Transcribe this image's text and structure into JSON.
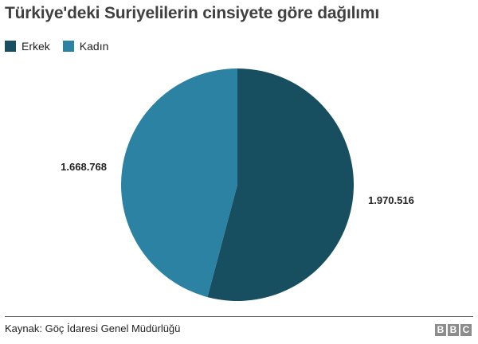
{
  "chart_data": {
    "type": "pie",
    "title": "Türkiye'deki Suriyelilerin cinsiyete göre dağılımı",
    "legend_position": "top-left",
    "slices": [
      {
        "name": "Erkek",
        "value": 1970516,
        "label": "1.970.516",
        "color": "#174f60"
      },
      {
        "name": "Kadın",
        "value": 1668768,
        "label": "1.668.768",
        "color": "#2b82a2"
      }
    ]
  },
  "footer": {
    "source": "Kaynak: Göç İdaresi Genel Müdürlüğü",
    "logo": [
      "B",
      "B",
      "C"
    ]
  }
}
